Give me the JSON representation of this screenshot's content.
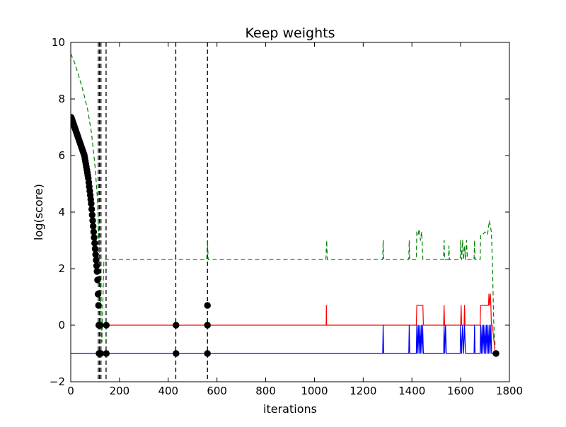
{
  "chart_data": {
    "type": "line",
    "title": "Keep weights",
    "xlabel": "iterations",
    "ylabel": "log(score)",
    "xlim": [
      0,
      1800
    ],
    "ylim": [
      -2,
      10
    ],
    "xticks": [
      0,
      200,
      400,
      600,
      800,
      1000,
      1200,
      1400,
      1600,
      1800
    ],
    "yticks": [
      -2,
      0,
      2,
      4,
      6,
      8,
      10
    ],
    "grid": false,
    "legend": "none",
    "vertical_dashed_lines": [
      113,
      118,
      124,
      145,
      431,
      561
    ],
    "series": [
      {
        "color": "#008000",
        "style": "dashed",
        "points": [
          [
            0,
            9.6
          ],
          [
            15,
            9.3
          ],
          [
            30,
            8.9
          ],
          [
            50,
            8.3
          ],
          [
            70,
            7.6
          ],
          [
            85,
            6.8
          ],
          [
            100,
            5.6
          ],
          [
            110,
            4.4
          ],
          [
            116,
            3.0
          ],
          [
            118,
            2.6
          ],
          [
            120,
            2.0
          ],
          [
            122,
            1.2
          ],
          [
            125,
            0.0
          ],
          [
            128,
            -0.6
          ],
          [
            132,
            0.9
          ],
          [
            136,
            2.3
          ],
          [
            140,
            2.32
          ],
          [
            428,
            2.32
          ],
          [
            430,
            2.4
          ],
          [
            432,
            2.32
          ],
          [
            558,
            2.32
          ],
          [
            561,
            3.0
          ],
          [
            564,
            2.32
          ],
          [
            1047,
            2.32
          ],
          [
            1050,
            3.0
          ],
          [
            1053,
            2.32
          ],
          [
            1280,
            2.32
          ],
          [
            1282,
            3.0
          ],
          [
            1284,
            2.32
          ],
          [
            1387,
            2.32
          ],
          [
            1389,
            3.0
          ],
          [
            1391,
            2.32
          ],
          [
            1418,
            2.32
          ],
          [
            1420,
            3.3
          ],
          [
            1425,
            3.2
          ],
          [
            1430,
            3.4
          ],
          [
            1435,
            3.0
          ],
          [
            1440,
            3.3
          ],
          [
            1445,
            2.32
          ],
          [
            1530,
            2.32
          ],
          [
            1532,
            3.0
          ],
          [
            1534,
            2.32
          ],
          [
            1550,
            2.32
          ],
          [
            1552,
            2.8
          ],
          [
            1554,
            2.32
          ],
          [
            1598,
            2.32
          ],
          [
            1600,
            3.0
          ],
          [
            1604,
            2.32
          ],
          [
            1608,
            3.0
          ],
          [
            1612,
            2.32
          ],
          [
            1616,
            2.8
          ],
          [
            1620,
            2.32
          ],
          [
            1624,
            3.0
          ],
          [
            1628,
            2.32
          ],
          [
            1655,
            2.32
          ],
          [
            1657,
            3.0
          ],
          [
            1659,
            2.32
          ],
          [
            1680,
            2.32
          ],
          [
            1682,
            3.2
          ],
          [
            1690,
            3.2
          ],
          [
            1700,
            3.3
          ],
          [
            1710,
            3.2
          ],
          [
            1718,
            3.7
          ],
          [
            1722,
            3.5
          ],
          [
            1726,
            3.3
          ],
          [
            1730,
            2.3
          ],
          [
            1736,
            0.0
          ],
          [
            1742,
            -0.8
          ]
        ]
      },
      {
        "color": "#ff0000",
        "style": "solid",
        "points": [
          [
            125,
            0
          ],
          [
            1048,
            0
          ],
          [
            1049,
            0.7
          ],
          [
            1050,
            0
          ],
          [
            1418,
            0
          ],
          [
            1420,
            0.7
          ],
          [
            1445,
            0.7
          ],
          [
            1447,
            0
          ],
          [
            1530,
            0
          ],
          [
            1532,
            0.7
          ],
          [
            1534,
            0
          ],
          [
            1600,
            0
          ],
          [
            1602,
            0.7
          ],
          [
            1604,
            0
          ],
          [
            1614,
            0
          ],
          [
            1616,
            0.7
          ],
          [
            1618,
            0
          ],
          [
            1680,
            0
          ],
          [
            1682,
            0.7
          ],
          [
            1714,
            0.7
          ],
          [
            1716,
            1.1
          ],
          [
            1718,
            0.7
          ],
          [
            1722,
            1.1
          ],
          [
            1724,
            0.7
          ],
          [
            1726,
            0
          ],
          [
            1730,
            0
          ],
          [
            1742,
            -1
          ]
        ]
      },
      {
        "color": "#0000ff",
        "style": "solid",
        "points": [
          [
            0,
            -1
          ],
          [
            1280,
            -1
          ],
          [
            1282,
            0
          ],
          [
            1284,
            -1
          ],
          [
            1387,
            -1
          ],
          [
            1389,
            0
          ],
          [
            1391,
            -1
          ],
          [
            1418,
            -1
          ],
          [
            1420,
            0
          ],
          [
            1423,
            -1
          ],
          [
            1426,
            0
          ],
          [
            1429,
            -1
          ],
          [
            1432,
            0
          ],
          [
            1435,
            -1
          ],
          [
            1438,
            0
          ],
          [
            1441,
            -1
          ],
          [
            1444,
            0
          ],
          [
            1447,
            -1
          ],
          [
            1530,
            -1
          ],
          [
            1532,
            0
          ],
          [
            1535,
            -1
          ],
          [
            1538,
            0
          ],
          [
            1541,
            -1
          ],
          [
            1598,
            -1
          ],
          [
            1600,
            0
          ],
          [
            1604,
            -1
          ],
          [
            1608,
            0
          ],
          [
            1612,
            -1
          ],
          [
            1616,
            0
          ],
          [
            1620,
            -1
          ],
          [
            1655,
            -1
          ],
          [
            1657,
            0
          ],
          [
            1659,
            -1
          ],
          [
            1680,
            -1
          ],
          [
            1682,
            0
          ],
          [
            1685,
            -1
          ],
          [
            1688,
            0
          ],
          [
            1691,
            -1
          ],
          [
            1694,
            0
          ],
          [
            1697,
            -1
          ],
          [
            1700,
            0
          ],
          [
            1703,
            -1
          ],
          [
            1706,
            0
          ],
          [
            1709,
            -1
          ],
          [
            1712,
            0
          ],
          [
            1715,
            -1
          ],
          [
            1718,
            0
          ],
          [
            1721,
            -1
          ],
          [
            1724,
            0
          ],
          [
            1727,
            -1
          ],
          [
            1742,
            -1
          ]
        ]
      },
      {
        "color": "#000000",
        "style": "markers",
        "points": [
          [
            2,
            7.35
          ],
          [
            4,
            7.3
          ],
          [
            6,
            7.25
          ],
          [
            8,
            7.2
          ],
          [
            10,
            7.15
          ],
          [
            12,
            7.1
          ],
          [
            14,
            7.05
          ],
          [
            16,
            7.0
          ],
          [
            18,
            6.95
          ],
          [
            20,
            6.9
          ],
          [
            22,
            6.85
          ],
          [
            24,
            6.8
          ],
          [
            26,
            6.75
          ],
          [
            28,
            6.7
          ],
          [
            30,
            6.65
          ],
          [
            32,
            6.6
          ],
          [
            34,
            6.55
          ],
          [
            36,
            6.5
          ],
          [
            38,
            6.45
          ],
          [
            40,
            6.4
          ],
          [
            42,
            6.35
          ],
          [
            44,
            6.3
          ],
          [
            46,
            6.25
          ],
          [
            48,
            6.2
          ],
          [
            50,
            6.15
          ],
          [
            52,
            6.1
          ],
          [
            54,
            6.05
          ],
          [
            56,
            6.0
          ],
          [
            58,
            5.9
          ],
          [
            60,
            5.8
          ],
          [
            62,
            5.7
          ],
          [
            64,
            5.6
          ],
          [
            66,
            5.5
          ],
          [
            68,
            5.4
          ],
          [
            70,
            5.3
          ],
          [
            72,
            5.2
          ],
          [
            74,
            5.05
          ],
          [
            76,
            4.9
          ],
          [
            78,
            4.75
          ],
          [
            80,
            4.6
          ],
          [
            82,
            4.45
          ],
          [
            84,
            4.3
          ],
          [
            86,
            4.1
          ],
          [
            88,
            3.9
          ],
          [
            90,
            3.7
          ],
          [
            92,
            3.5
          ],
          [
            94,
            3.3
          ],
          [
            96,
            3.1
          ],
          [
            98,
            2.9
          ],
          [
            100,
            2.7
          ],
          [
            102,
            2.5
          ],
          [
            104,
            2.3
          ],
          [
            106,
            2.1
          ],
          [
            108,
            1.9
          ],
          [
            110,
            1.6
          ],
          [
            112,
            1.1
          ],
          [
            114,
            0.7
          ],
          [
            115,
            0.0
          ],
          [
            116,
            -1.0
          ],
          [
            121,
            0.0
          ],
          [
            123,
            -1.0
          ],
          [
            146,
            0.0
          ],
          [
            146,
            -1.0
          ],
          [
            432,
            0.0
          ],
          [
            432,
            -1.0
          ],
          [
            561,
            0.7
          ],
          [
            561,
            0.0
          ],
          [
            561,
            -1.0
          ],
          [
            1745,
            -1.0
          ]
        ]
      }
    ]
  }
}
